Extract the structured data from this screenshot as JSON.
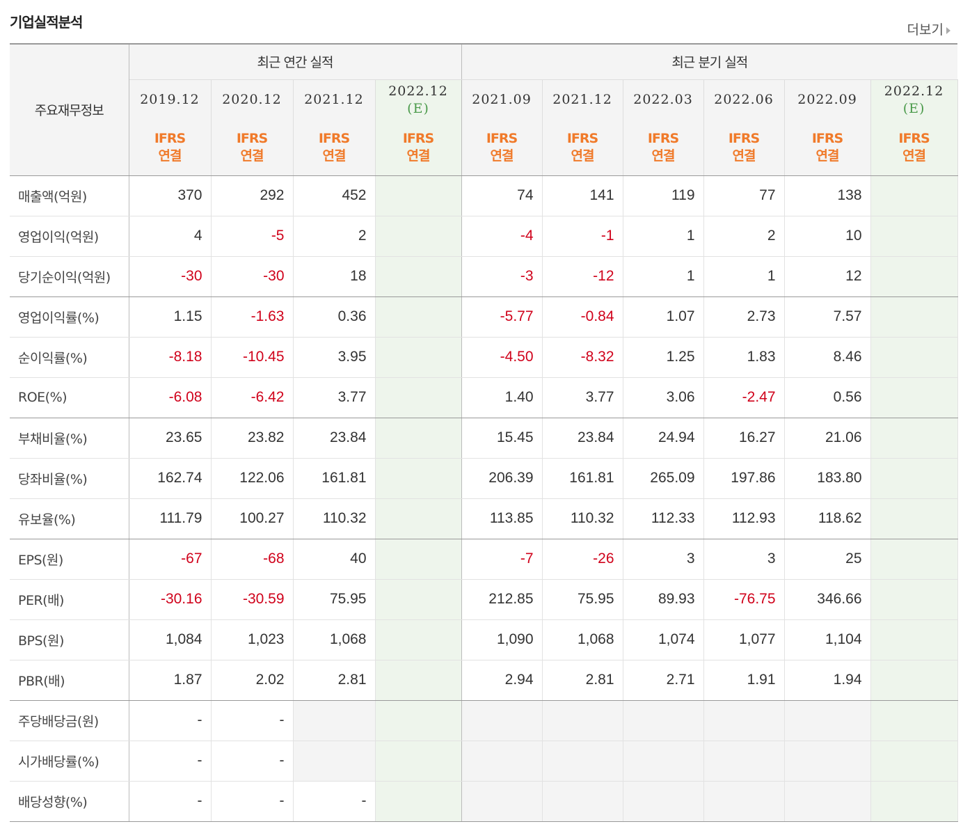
{
  "header": {
    "title": "기업실적분석",
    "more_label": "더보기"
  },
  "table": {
    "row_header_label": "주요재무정보",
    "groups": {
      "annual": "최근 연간 실적",
      "quarterly": "최근 분기 실적"
    },
    "columns": [
      {
        "date": "2019.12",
        "est": "",
        "ifrs1": "IFRS",
        "ifrs2": "연결"
      },
      {
        "date": "2020.12",
        "est": "",
        "ifrs1": "IFRS",
        "ifrs2": "연결"
      },
      {
        "date": "2021.12",
        "est": "",
        "ifrs1": "IFRS",
        "ifrs2": "연결"
      },
      {
        "date": "2022.12",
        "est": "(E)",
        "ifrs1": "IFRS",
        "ifrs2": "연결"
      },
      {
        "date": "2021.09",
        "est": "",
        "ifrs1": "IFRS",
        "ifrs2": "연결"
      },
      {
        "date": "2021.12",
        "est": "",
        "ifrs1": "IFRS",
        "ifrs2": "연결"
      },
      {
        "date": "2022.03",
        "est": "",
        "ifrs1": "IFRS",
        "ifrs2": "연결"
      },
      {
        "date": "2022.06",
        "est": "",
        "ifrs1": "IFRS",
        "ifrs2": "연결"
      },
      {
        "date": "2022.09",
        "est": "",
        "ifrs1": "IFRS",
        "ifrs2": "연결"
      },
      {
        "date": "2022.12",
        "est": "(E)",
        "ifrs1": "IFRS",
        "ifrs2": "연결"
      }
    ],
    "rows": [
      {
        "label": "매출액(억원)",
        "values": [
          "370",
          "292",
          "452",
          "",
          "74",
          "141",
          "119",
          "77",
          "138",
          ""
        ]
      },
      {
        "label": "영업이익(억원)",
        "values": [
          "4",
          "-5",
          "2",
          "",
          "-4",
          "-1",
          "1",
          "2",
          "10",
          ""
        ]
      },
      {
        "label": "당기순이익(억원)",
        "values": [
          "-30",
          "-30",
          "18",
          "",
          "-3",
          "-12",
          "1",
          "1",
          "12",
          ""
        ]
      },
      {
        "label": "영업이익률(%)",
        "values": [
          "1.15",
          "-1.63",
          "0.36",
          "",
          "-5.77",
          "-0.84",
          "1.07",
          "2.73",
          "7.57",
          ""
        ]
      },
      {
        "label": "순이익률(%)",
        "values": [
          "-8.18",
          "-10.45",
          "3.95",
          "",
          "-4.50",
          "-8.32",
          "1.25",
          "1.83",
          "8.46",
          ""
        ]
      },
      {
        "label": "ROE(%)",
        "values": [
          "-6.08",
          "-6.42",
          "3.77",
          "",
          "1.40",
          "3.77",
          "3.06",
          "-2.47",
          "0.56",
          ""
        ]
      },
      {
        "label": "부채비율(%)",
        "values": [
          "23.65",
          "23.82",
          "23.84",
          "",
          "15.45",
          "23.84",
          "24.94",
          "16.27",
          "21.06",
          ""
        ]
      },
      {
        "label": "당좌비율(%)",
        "values": [
          "162.74",
          "122.06",
          "161.81",
          "",
          "206.39",
          "161.81",
          "265.09",
          "197.86",
          "183.80",
          ""
        ]
      },
      {
        "label": "유보율(%)",
        "values": [
          "111.79",
          "100.27",
          "110.32",
          "",
          "113.85",
          "110.32",
          "112.33",
          "112.93",
          "118.62",
          ""
        ]
      },
      {
        "label": "EPS(원)",
        "values": [
          "-67",
          "-68",
          "40",
          "",
          "-7",
          "-26",
          "3",
          "3",
          "25",
          ""
        ]
      },
      {
        "label": "PER(배)",
        "values": [
          "-30.16",
          "-30.59",
          "75.95",
          "",
          "212.85",
          "75.95",
          "89.93",
          "-76.75",
          "346.66",
          ""
        ]
      },
      {
        "label": "BPS(원)",
        "values": [
          "1,084",
          "1,023",
          "1,068",
          "",
          "1,090",
          "1,068",
          "1,074",
          "1,077",
          "1,104",
          ""
        ]
      },
      {
        "label": "PBR(배)",
        "values": [
          "1.87",
          "2.02",
          "2.81",
          "",
          "2.94",
          "2.81",
          "2.71",
          "1.91",
          "1.94",
          ""
        ]
      },
      {
        "label": "주당배당금(원)",
        "values": [
          "-",
          "-",
          "",
          "",
          "",
          "",
          "",
          "",
          "",
          ""
        ]
      },
      {
        "label": "시가배당률(%)",
        "values": [
          "-",
          "-",
          "",
          "",
          "",
          "",
          "",
          "",
          "",
          ""
        ]
      },
      {
        "label": "배당성향(%)",
        "values": [
          "-",
          "-",
          "-",
          "",
          "",
          "",
          "",
          "",
          "",
          ""
        ]
      }
    ]
  }
}
